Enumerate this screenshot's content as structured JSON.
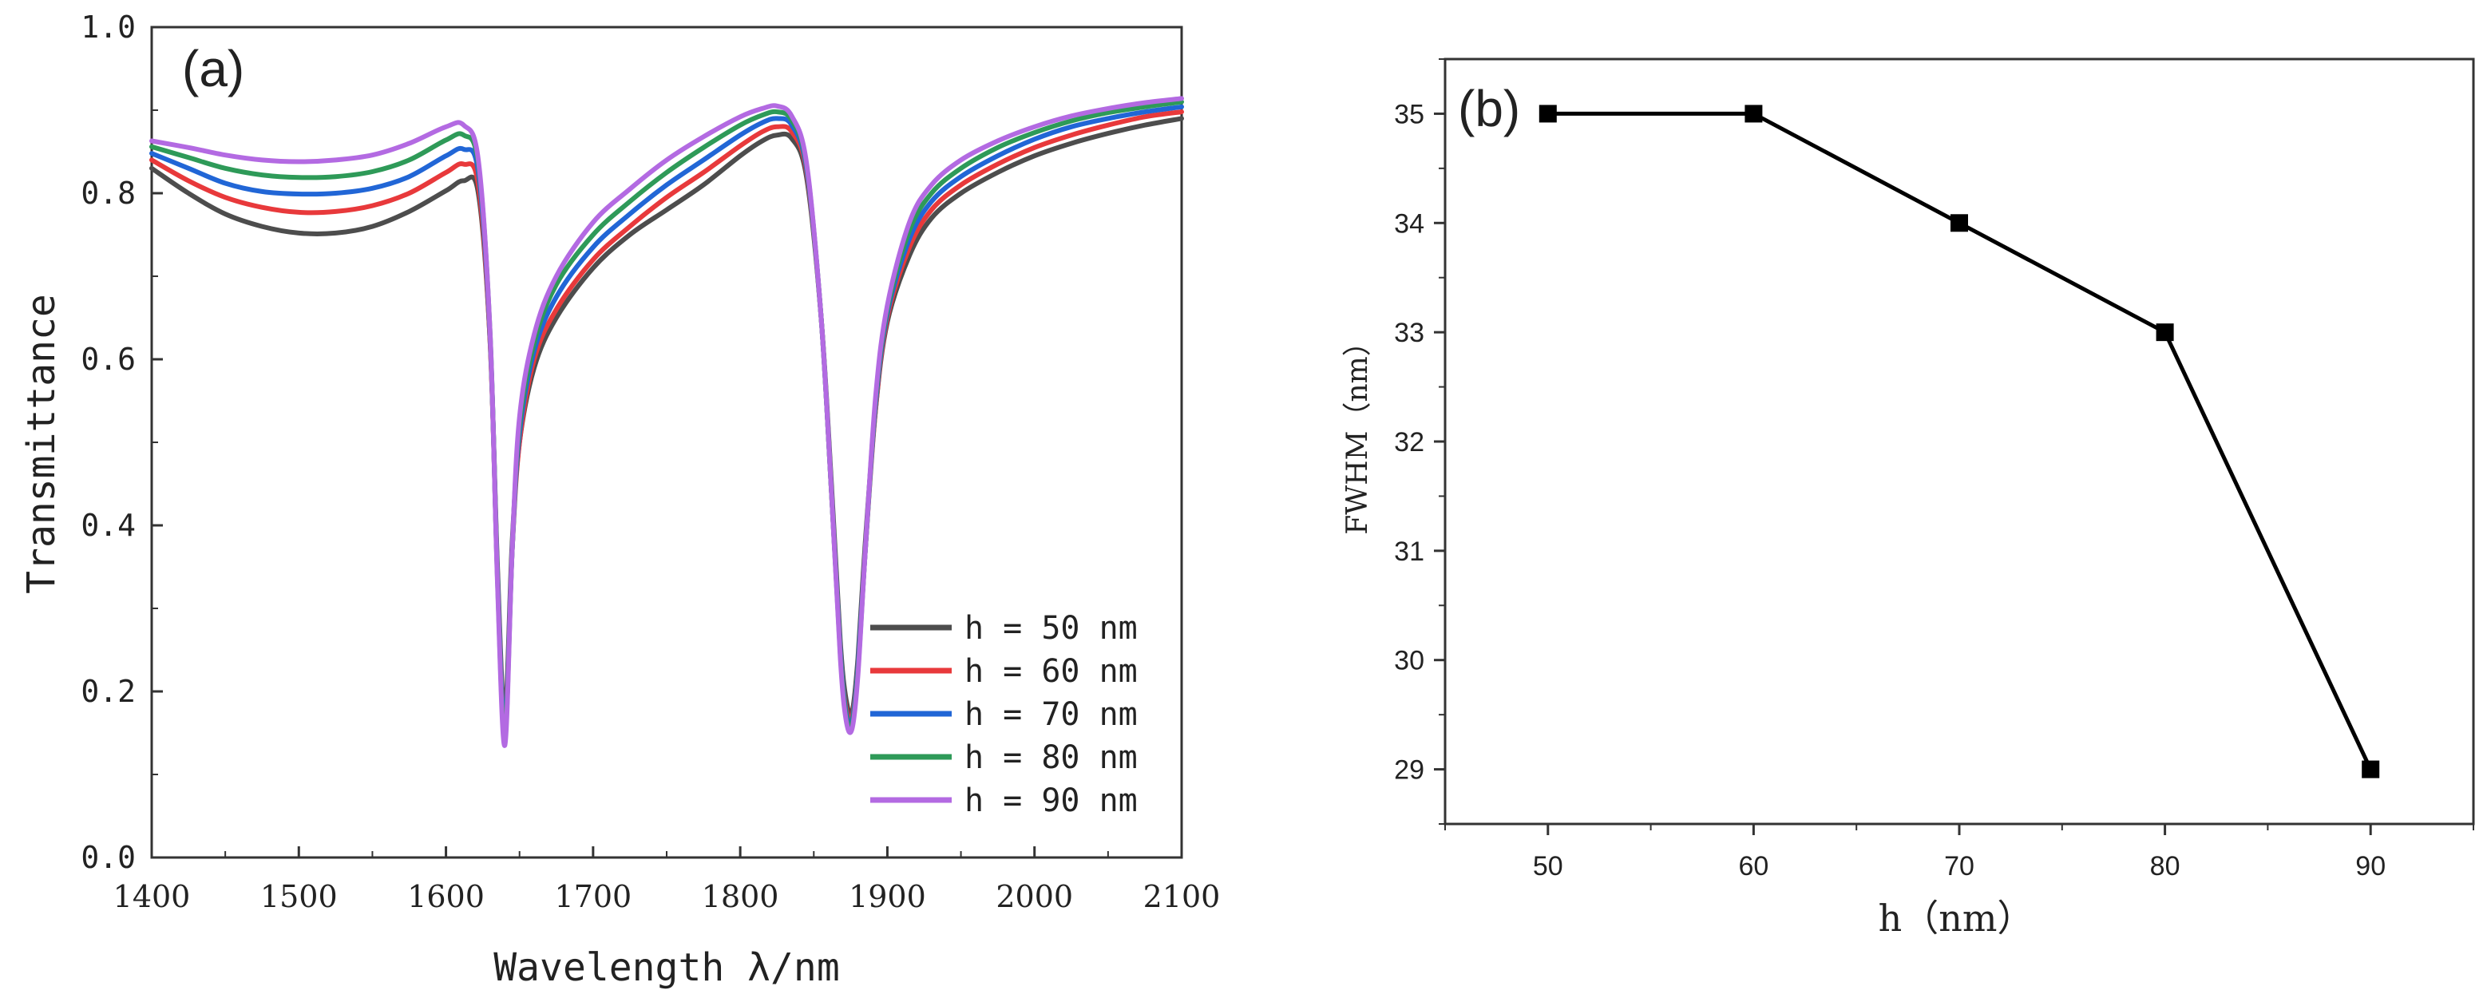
{
  "chart_data": [
    {
      "type": "line",
      "panel_label": "(a)",
      "title": "",
      "xlabel": "Wavelength λ/nm",
      "ylabel": "Transmittance",
      "xlim": [
        1400,
        2100
      ],
      "ylim": [
        0.0,
        1.0
      ],
      "xticks": [
        "1400",
        "1500",
        "1600",
        "1700",
        "1800",
        "1900",
        "2000",
        "2100"
      ],
      "yticks": [
        "0.0",
        "0.2",
        "0.4",
        "0.6",
        "0.8",
        "1.0"
      ],
      "legend_position": "bottom-right",
      "x": [
        1400,
        1425,
        1450,
        1475,
        1500,
        1525,
        1550,
        1575,
        1600,
        1612,
        1622,
        1630,
        1635,
        1640,
        1645,
        1650,
        1660,
        1675,
        1700,
        1725,
        1750,
        1775,
        1800,
        1815,
        1825,
        1835,
        1845,
        1855,
        1862,
        1868,
        1872,
        1876,
        1880,
        1885,
        1892,
        1900,
        1915,
        1930,
        1950,
        1975,
        2000,
        2025,
        2050,
        2075,
        2100
      ],
      "series": [
        {
          "name": "h = 50 nm",
          "color": "#4d4d4d",
          "values": [
            0.83,
            0.8,
            0.775,
            0.76,
            0.752,
            0.752,
            0.76,
            0.778,
            0.803,
            0.815,
            0.8,
            0.62,
            0.35,
            0.17,
            0.38,
            0.5,
            0.59,
            0.65,
            0.71,
            0.75,
            0.78,
            0.81,
            0.845,
            0.863,
            0.87,
            0.866,
            0.82,
            0.65,
            0.45,
            0.26,
            0.19,
            0.175,
            0.24,
            0.38,
            0.54,
            0.645,
            0.725,
            0.77,
            0.8,
            0.825,
            0.845,
            0.86,
            0.872,
            0.882,
            0.89
          ]
        },
        {
          "name": "h = 60 nm",
          "color": "#e8393b",
          "values": [
            0.84,
            0.815,
            0.795,
            0.783,
            0.777,
            0.778,
            0.785,
            0.8,
            0.825,
            0.835,
            0.81,
            0.62,
            0.34,
            0.16,
            0.37,
            0.5,
            0.6,
            0.66,
            0.72,
            0.76,
            0.795,
            0.825,
            0.857,
            0.874,
            0.88,
            0.874,
            0.826,
            0.65,
            0.44,
            0.25,
            0.18,
            0.17,
            0.23,
            0.37,
            0.54,
            0.65,
            0.735,
            0.78,
            0.81,
            0.835,
            0.855,
            0.87,
            0.882,
            0.892,
            0.898
          ]
        },
        {
          "name": "h = 70 nm",
          "color": "#2166d6",
          "values": [
            0.848,
            0.83,
            0.812,
            0.802,
            0.799,
            0.8,
            0.806,
            0.82,
            0.845,
            0.853,
            0.825,
            0.625,
            0.34,
            0.155,
            0.37,
            0.51,
            0.61,
            0.675,
            0.735,
            0.775,
            0.81,
            0.84,
            0.87,
            0.885,
            0.89,
            0.882,
            0.83,
            0.65,
            0.44,
            0.25,
            0.175,
            0.165,
            0.23,
            0.37,
            0.545,
            0.655,
            0.745,
            0.79,
            0.82,
            0.845,
            0.865,
            0.88,
            0.89,
            0.898,
            0.904
          ]
        },
        {
          "name": "h = 80 nm",
          "color": "#2e9a58",
          "values": [
            0.856,
            0.843,
            0.83,
            0.822,
            0.819,
            0.82,
            0.826,
            0.84,
            0.864,
            0.87,
            0.835,
            0.63,
            0.335,
            0.145,
            0.37,
            0.52,
            0.62,
            0.69,
            0.75,
            0.79,
            0.825,
            0.855,
            0.882,
            0.894,
            0.898,
            0.888,
            0.834,
            0.65,
            0.44,
            0.245,
            0.17,
            0.16,
            0.225,
            0.37,
            0.55,
            0.66,
            0.755,
            0.8,
            0.83,
            0.855,
            0.873,
            0.887,
            0.897,
            0.904,
            0.91
          ]
        },
        {
          "name": "h = 90 nm",
          "color": "#b36ae2",
          "values": [
            0.863,
            0.855,
            0.846,
            0.84,
            0.838,
            0.84,
            0.846,
            0.86,
            0.88,
            0.882,
            0.84,
            0.63,
            0.33,
            0.135,
            0.37,
            0.53,
            0.63,
            0.7,
            0.765,
            0.805,
            0.84,
            0.868,
            0.892,
            0.902,
            0.905,
            0.893,
            0.837,
            0.65,
            0.44,
            0.24,
            0.165,
            0.155,
            0.22,
            0.37,
            0.555,
            0.665,
            0.765,
            0.81,
            0.84,
            0.863,
            0.88,
            0.893,
            0.902,
            0.909,
            0.914
          ]
        }
      ]
    },
    {
      "type": "line",
      "panel_label": "(b)",
      "title": "",
      "xlabel": "h（nm）",
      "ylabel": "FWHM（nm）",
      "xlim": [
        45,
        95
      ],
      "ylim": [
        28.5,
        35.5
      ],
      "xticks": [
        "50",
        "60",
        "70",
        "80",
        "90"
      ],
      "yticks": [
        "29",
        "30",
        "31",
        "32",
        "33",
        "34",
        "35"
      ],
      "legend_position": "none",
      "x": [
        50,
        60,
        70,
        80,
        90
      ],
      "series": [
        {
          "name": "FWHM",
          "color": "#000000",
          "marker": "square",
          "values": [
            35,
            35,
            34,
            33,
            29
          ]
        }
      ]
    }
  ]
}
